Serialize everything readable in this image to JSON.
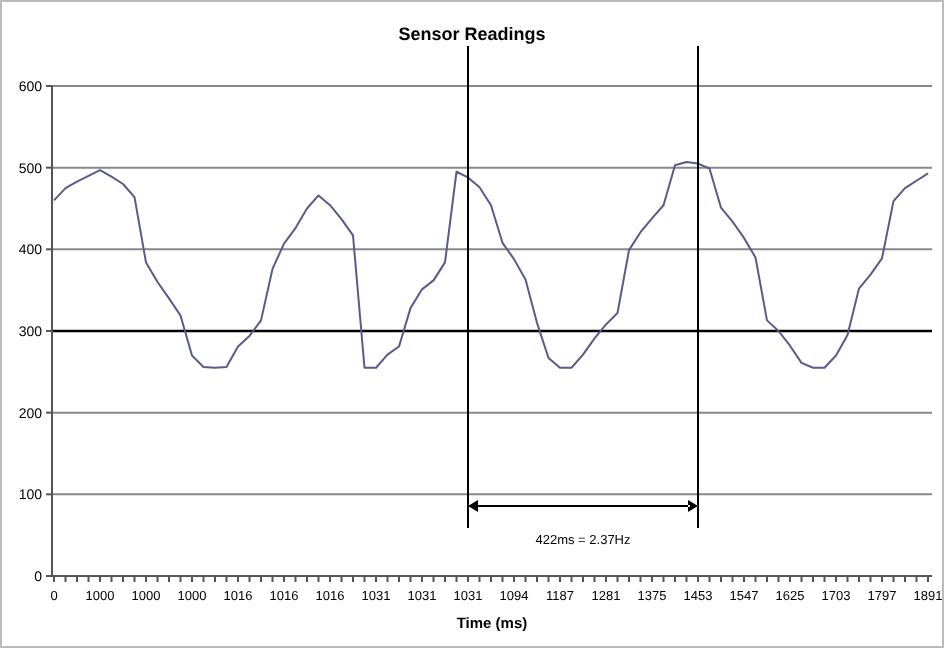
{
  "chart_data": {
    "type": "line",
    "title": "Sensor Readings",
    "xlabel": "Time (ms)",
    "categories": [
      "0",
      null,
      null,
      null,
      "1000",
      null,
      null,
      null,
      "1000",
      null,
      null,
      null,
      "1000",
      null,
      null,
      null,
      "1016",
      null,
      null,
      null,
      "1016",
      null,
      null,
      null,
      "1016",
      null,
      null,
      null,
      "1031",
      null,
      null,
      null,
      "1031",
      null,
      null,
      null,
      "1031",
      null,
      null,
      null,
      "1094",
      null,
      null,
      null,
      "1187",
      null,
      null,
      null,
      "1281",
      null,
      null,
      null,
      "1375",
      null,
      null,
      null,
      "1453",
      null,
      null,
      null,
      "1547",
      null,
      null,
      null,
      "1625",
      null,
      null,
      null,
      "1703",
      null,
      null,
      null,
      "1797",
      null,
      null,
      null,
      "1891"
    ],
    "series": [
      {
        "color": "#5a5a8c",
        "values": [
          460,
          475,
          483,
          490,
          497,
          489,
          480,
          464,
          384,
          360,
          340,
          319,
          270,
          256,
          255,
          256,
          281,
          294,
          313,
          376,
          407,
          426,
          450,
          466,
          454,
          437,
          417,
          255,
          255,
          271,
          281,
          328,
          351,
          362,
          384,
          495,
          488,
          476,
          454,
          408,
          388,
          363,
          310,
          267,
          255,
          255,
          271,
          291,
          308,
          322,
          399,
          421,
          438,
          454,
          503,
          507,
          505,
          499,
          451,
          434,
          414,
          390,
          313,
          300,
          282,
          261,
          255,
          255,
          270,
          295,
          352,
          369,
          389,
          459,
          475,
          484,
          493
        ]
      }
    ],
    "ylim": [
      0,
      600
    ],
    "yticks": [
      0,
      100,
      200,
      300,
      400,
      500,
      600
    ],
    "grid": "y",
    "ref_lines": [
      {
        "axis": "y",
        "value": 300,
        "color": "#000000"
      }
    ],
    "annotations": [
      "422ms = 2.37Hz"
    ]
  }
}
